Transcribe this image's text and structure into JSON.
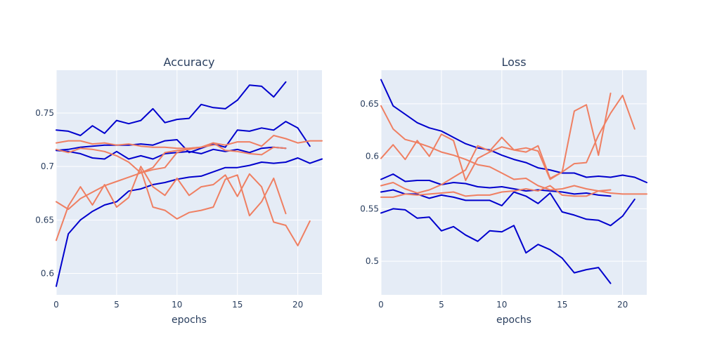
{
  "chart_data": [
    {
      "type": "line",
      "title": "Accuracy",
      "xlabel": "epochs",
      "ylabel": "",
      "xlim": [
        0,
        22
      ],
      "ylim": [
        0.58,
        0.79
      ],
      "xticks": [
        0,
        5,
        10,
        15,
        20
      ],
      "yticks": [
        0.6,
        0.65,
        0.7,
        0.75
      ],
      "ytick_labels": [
        "0.6",
        "0.65",
        "0.7",
        "0.75"
      ],
      "series": [
        {
          "color": "#0000cd",
          "values": [
            0.734,
            0.733,
            0.729,
            0.738,
            0.731,
            0.743,
            0.74,
            0.743,
            0.754,
            0.741,
            0.744,
            0.745,
            0.758,
            0.755,
            0.754,
            0.762,
            0.776,
            0.775,
            0.765,
            0.779
          ]
        },
        {
          "color": "#0000cd",
          "values": [
            0.715,
            0.716,
            0.718,
            0.719,
            0.72,
            0.72,
            0.72,
            0.721,
            0.72,
            0.724,
            0.725,
            0.713,
            0.717,
            0.721,
            0.718,
            0.734,
            0.733,
            0.736,
            0.734,
            0.742,
            0.736,
            0.719
          ]
        },
        {
          "color": "#0000cd",
          "values": [
            0.715,
            0.714,
            0.712,
            0.708,
            0.707,
            0.714,
            0.707,
            0.71,
            0.707,
            0.712,
            0.713,
            0.714,
            0.712,
            0.716,
            0.714,
            0.716,
            0.713,
            0.717,
            0.718,
            0.717
          ]
        },
        {
          "color": "#0000cd",
          "values": [
            0.588,
            0.637,
            0.65,
            0.658,
            0.664,
            0.667,
            0.677,
            0.679,
            0.683,
            0.685,
            0.688,
            0.69,
            0.691,
            0.695,
            0.699,
            0.699,
            0.701,
            0.704,
            0.703,
            0.704,
            0.708,
            0.703,
            0.707
          ]
        },
        {
          "color": "#ef7f62",
          "values": [
            0.722,
            0.724,
            0.724,
            0.721,
            0.722,
            0.72,
            0.721,
            0.719,
            0.718,
            0.718,
            0.717,
            0.717,
            0.718,
            0.722,
            0.72,
            0.723,
            0.723,
            0.719,
            0.729,
            0.726,
            0.722,
            0.724,
            0.724
          ]
        },
        {
          "color": "#ef7f62",
          "values": [
            0.716,
            0.713,
            0.717,
            0.716,
            0.714,
            0.71,
            0.704,
            0.694,
            0.699,
            0.713,
            0.715,
            0.716,
            0.718,
            0.722,
            0.715,
            0.714,
            0.712,
            0.711,
            0.718,
            0.717
          ]
        },
        {
          "color": "#ef7f62",
          "values": [
            0.667,
            0.66,
            0.67,
            0.676,
            0.682,
            0.686,
            0.69,
            0.694,
            0.697,
            0.699,
            0.713,
            0.717,
            0.718,
            0.72
          ]
        },
        {
          "color": "#ef7f62",
          "values": [
            0.631,
            0.663,
            0.681,
            0.664,
            0.683,
            0.662,
            0.671,
            0.7,
            0.681,
            0.673,
            0.689,
            0.673,
            0.681,
            0.683,
            0.692,
            0.672,
            0.693,
            0.681,
            0.648,
            0.645,
            0.626,
            0.649
          ]
        },
        {
          "color": "#ef7f62",
          "values": [
            null,
            null,
            null,
            null,
            null,
            null,
            null,
            0.697,
            0.662,
            0.659,
            0.651,
            0.657,
            0.659,
            0.662,
            0.688,
            0.692,
            0.654,
            0.667,
            0.689,
            0.656
          ]
        }
      ]
    },
    {
      "type": "line",
      "title": "Loss",
      "xlabel": "epochs",
      "ylabel": "",
      "xlim": [
        0,
        22
      ],
      "ylim": [
        0.468,
        0.682
      ],
      "xticks": [
        0,
        5,
        10,
        15,
        20
      ],
      "yticks": [
        0.5,
        0.55,
        0.6,
        0.65
      ],
      "ytick_labels": [
        "0.5",
        "0.55",
        "0.6",
        "0.65"
      ],
      "series": [
        {
          "color": "#0000cd",
          "values": [
            0.673,
            0.648,
            0.64,
            0.632,
            0.627,
            0.624,
            0.618,
            0.612,
            0.608,
            0.606,
            0.601,
            0.597,
            0.594,
            0.589,
            0.587,
            0.584,
            0.584,
            0.58,
            0.581,
            0.58,
            0.582,
            0.58,
            0.575
          ]
        },
        {
          "color": "#0000cd",
          "values": [
            0.578,
            0.583,
            0.576,
            0.577,
            0.577,
            0.573,
            0.575,
            0.574,
            0.571,
            0.57,
            0.571,
            0.569,
            0.567,
            0.568,
            0.567,
            0.566,
            0.564,
            0.565,
            0.563,
            0.562
          ]
        },
        {
          "color": "#0000cd",
          "values": [
            0.566,
            0.568,
            0.564,
            0.564,
            0.56,
            0.563,
            0.561,
            0.558,
            0.558,
            0.558,
            0.553,
            0.566,
            0.562,
            0.555,
            0.565,
            0.547,
            0.544,
            0.54,
            0.539,
            0.534,
            0.543,
            0.559
          ]
        },
        {
          "color": "#0000cd",
          "values": [
            0.546,
            0.55,
            0.549,
            0.541,
            0.542,
            0.529,
            0.533,
            0.525,
            0.519,
            0.529,
            0.528,
            0.534,
            0.508,
            0.516,
            0.511,
            0.503,
            0.489,
            0.492,
            0.494,
            0.479
          ]
        },
        {
          "color": "#ef7f62",
          "values": [
            0.648,
            0.626,
            0.616,
            0.613,
            0.609,
            0.604,
            0.601,
            0.597,
            0.592,
            0.59,
            0.584,
            0.578,
            0.579,
            0.572,
            0.568,
            0.569,
            0.572,
            0.569,
            0.567,
            0.565,
            0.564,
            0.564,
            0.564
          ]
        },
        {
          "color": "#ef7f62",
          "values": [
            0.598,
            0.611,
            0.597,
            0.615,
            0.6,
            0.621,
            0.615,
            0.577,
            0.598,
            0.604,
            0.609,
            0.606,
            0.604,
            0.61,
            0.579,
            0.585,
            0.643,
            0.649,
            0.601,
            0.66
          ]
        },
        {
          "color": "#ef7f62",
          "values": [
            0.572,
            0.575,
            0.569,
            0.565,
            0.568,
            0.573,
            0.58,
            0.587,
            0.61,
            0.605,
            0.618,
            0.606,
            0.608,
            0.605,
            0.578,
            0.585,
            0.593,
            0.594,
            0.62,
            0.641,
            0.658,
            0.626
          ]
        },
        {
          "color": "#ef7f62",
          "values": [
            0.561,
            0.561,
            0.564,
            0.563,
            0.564,
            0.565,
            0.566,
            0.562,
            0.563,
            0.563,
            0.566,
            0.567,
            0.569,
            0.567,
            0.572,
            0.563,
            0.562,
            0.562,
            0.567,
            0.568
          ]
        }
      ]
    }
  ]
}
